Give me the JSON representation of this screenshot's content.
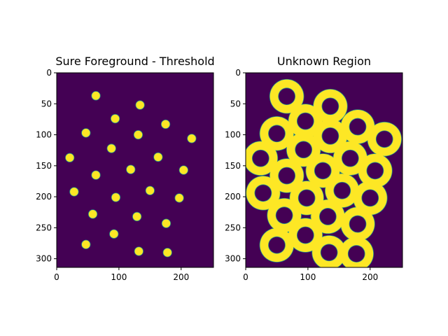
{
  "colors": {
    "background": "#440154",
    "foreground": "#fde725",
    "edge": "#21908c"
  },
  "chart_data": [
    {
      "type": "heatmap",
      "title": "Sure Foreground - Threshold",
      "xlabel": "",
      "ylabel": "",
      "xlim": [
        0,
        252
      ],
      "ylim": [
        314,
        0
      ],
      "xticks": [
        "0",
        "100",
        "200"
      ],
      "yticks": [
        "0",
        "50",
        "100",
        "150",
        "200",
        "250",
        "300"
      ],
      "grid": false,
      "blob_radius": 7,
      "blobs": [
        [
          63,
          37
        ],
        [
          134,
          52
        ],
        [
          94,
          74
        ],
        [
          175,
          83
        ],
        [
          47,
          97
        ],
        [
          131,
          100
        ],
        [
          217,
          106
        ],
        [
          88,
          122
        ],
        [
          163,
          136
        ],
        [
          21,
          137
        ],
        [
          119,
          156
        ],
        [
          204,
          157
        ],
        [
          63,
          165
        ],
        [
          28,
          192
        ],
        [
          150,
          190
        ],
        [
          197,
          202
        ],
        [
          95,
          201
        ],
        [
          58,
          228
        ],
        [
          129,
          232
        ],
        [
          176,
          243
        ],
        [
          92,
          260
        ],
        [
          47,
          277
        ],
        [
          132,
          288
        ],
        [
          178,
          290
        ]
      ]
    },
    {
      "type": "heatmap",
      "title": "Unknown Region",
      "xlabel": "",
      "ylabel": "",
      "xlim": [
        0,
        252
      ],
      "ylim": [
        314,
        0
      ],
      "xticks": [
        "0",
        "100",
        "200"
      ],
      "yticks": [
        "0",
        "50",
        "100",
        "150",
        "200",
        "250",
        "300"
      ],
      "grid": false,
      "ring_outer_radius": 27,
      "ring_inner_radius": 13,
      "rings": [
        [
          66,
          38
        ],
        [
          136,
          54
        ],
        [
          96,
          78
        ],
        [
          180,
          87
        ],
        [
          50,
          98
        ],
        [
          136,
          102
        ],
        [
          223,
          107
        ],
        [
          93,
          124
        ],
        [
          168,
          138
        ],
        [
          24,
          138
        ],
        [
          124,
          158
        ],
        [
          208,
          158
        ],
        [
          66,
          166
        ],
        [
          28,
          194
        ],
        [
          155,
          190
        ],
        [
          200,
          202
        ],
        [
          98,
          202
        ],
        [
          62,
          230
        ],
        [
          132,
          232
        ],
        [
          180,
          244
        ],
        [
          96,
          262
        ],
        [
          50,
          278
        ],
        [
          134,
          290
        ],
        [
          178,
          292
        ]
      ]
    }
  ]
}
